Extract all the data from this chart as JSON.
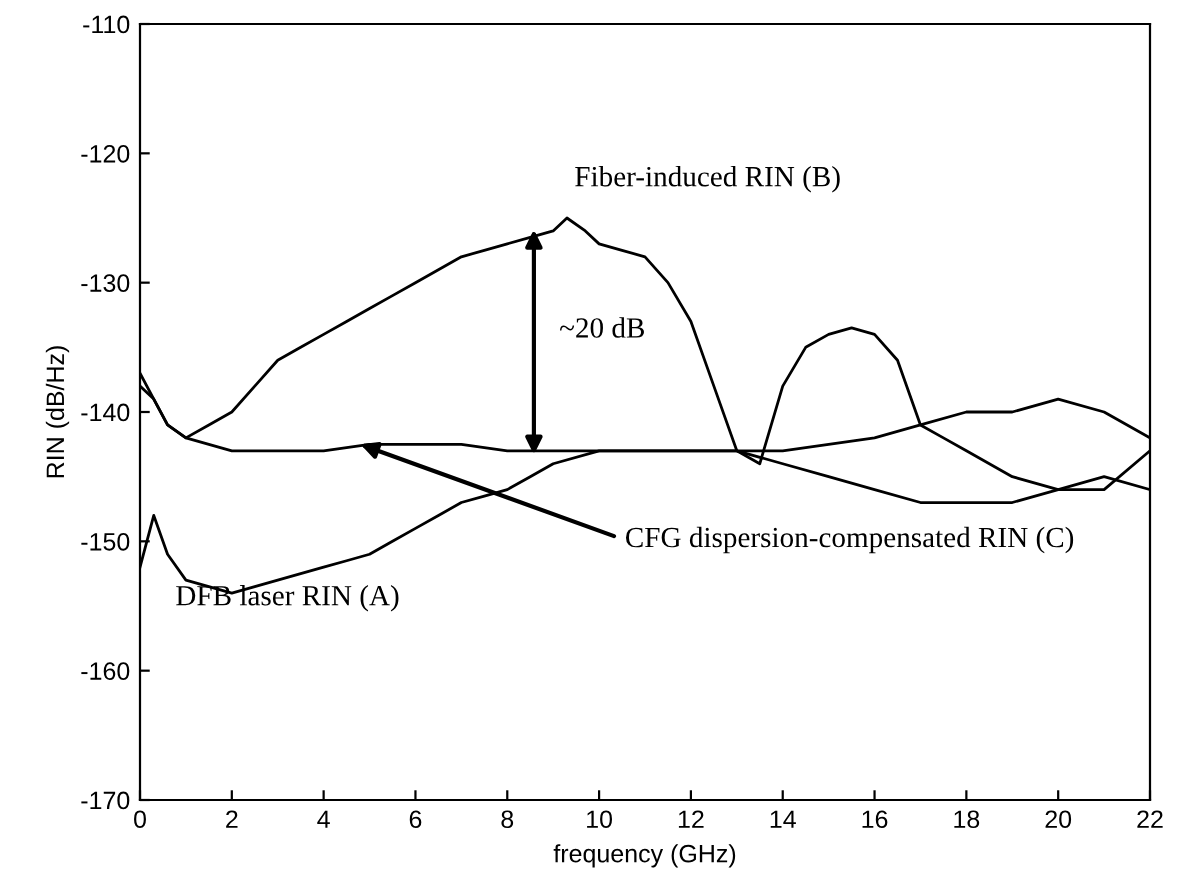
{
  "chart_data": {
    "type": "line",
    "xlabel": "frequency (GHz)",
    "ylabel": "RIN (dB/Hz)",
    "xlim": [
      0,
      22
    ],
    "ylim": [
      -170,
      -110
    ],
    "xticks": [
      0,
      2,
      4,
      6,
      8,
      10,
      12,
      14,
      16,
      18,
      20,
      22
    ],
    "yticks": [
      -170,
      -160,
      -150,
      -140,
      -130,
      -120,
      -110
    ],
    "grid": false,
    "legend": false,
    "marker": "none",
    "line_style": "solid",
    "series": [
      {
        "color": "#000000",
        "x": [
          0,
          0.3,
          0.6,
          1,
          1.5,
          2,
          2.5,
          3,
          3.5,
          4,
          4.5,
          5,
          5.5,
          6,
          6.5,
          7,
          7.5,
          8,
          8.5,
          9,
          9.3,
          9.7,
          10,
          10.5,
          11,
          11.5,
          12,
          12.5,
          13,
          13.5,
          14,
          14.5,
          15,
          15.5,
          16,
          16.5,
          17,
          17.5,
          18,
          19,
          20,
          21,
          22
        ],
        "values": [
          -137,
          -139,
          -141,
          -142,
          -141,
          -140,
          -138,
          -136,
          -135,
          -134,
          -133,
          -132,
          -131,
          -130,
          -129,
          -128,
          -127.5,
          -127,
          -126.5,
          -126,
          -125,
          -126,
          -127,
          -127.5,
          -128,
          -130,
          -133,
          -138,
          -143,
          -144,
          -138,
          -135,
          -134,
          -133.5,
          -134,
          -136,
          -141,
          -142,
          -143,
          -145,
          -146,
          -146,
          -143
        ]
      },
      {
        "color": "#000000",
        "x": [
          0,
          0.3,
          0.6,
          1,
          1.5,
          2,
          2.5,
          3,
          3.5,
          4,
          4.5,
          5,
          5.5,
          6,
          6.5,
          7,
          7.5,
          8,
          8.5,
          9,
          10,
          11,
          12,
          13,
          14,
          15,
          16,
          17,
          18,
          19,
          20,
          21,
          22
        ],
        "values": [
          -152,
          -148,
          -151,
          -153,
          -153.5,
          -154,
          -153.5,
          -153,
          -152.5,
          -152,
          -151.5,
          -151,
          -150,
          -149,
          -148,
          -147,
          -146.5,
          -146,
          -145,
          -144,
          -143,
          -143,
          -143,
          -143,
          -143,
          -142.5,
          -142,
          -141,
          -140,
          -140,
          -139,
          -140,
          -142
        ]
      },
      {
        "color": "#000000",
        "x": [
          0,
          0.3,
          0.6,
          1,
          1.5,
          2,
          3,
          4,
          5,
          6,
          7,
          8,
          9,
          10,
          11,
          12,
          13,
          14,
          15,
          16,
          17,
          18,
          19,
          20,
          21,
          22
        ],
        "values": [
          -138,
          -139,
          -141,
          -142,
          -142.5,
          -143,
          -143,
          -143,
          -142.5,
          -142.5,
          -142.5,
          -143,
          -143,
          -143,
          -143,
          -143,
          -143,
          -144,
          -145,
          -146,
          -147,
          -147,
          -147,
          -146,
          -145,
          -146
        ]
      }
    ],
    "annotations": [
      "Fiber-induced RIN (B)",
      "~20 dB",
      {
        "text": "CFG dispersion-compensated RIN (C)",
        "x": 4.8,
        "y": -142.5
      },
      "DFB laser RIN (A)"
    ]
  }
}
